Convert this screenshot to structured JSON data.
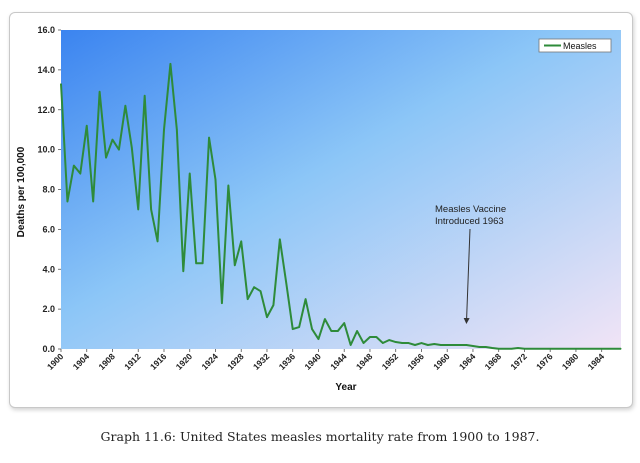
{
  "caption": "Graph 11.6: United States measles mortality rate from 1900 to 1987.",
  "chart_data": {
    "type": "line",
    "title": "",
    "xlabel": "Year",
    "ylabel": "Deaths per 100,000",
    "xlim": [
      1900,
      1987
    ],
    "ylim": [
      0,
      16
    ],
    "y_ticks": [
      "0.0",
      "2.0",
      "4.0",
      "6.0",
      "8.0",
      "10.0",
      "12.0",
      "14.0",
      "16.0"
    ],
    "x_ticks": [
      "1900",
      "1904",
      "1908",
      "1912",
      "1916",
      "1920",
      "1924",
      "1928",
      "1932",
      "1936",
      "1940",
      "1944",
      "1948",
      "1952",
      "1956",
      "1960",
      "1964",
      "1968",
      "1972",
      "1976",
      "1980",
      "1984"
    ],
    "grid": false,
    "legend_position": "top-right",
    "background_gradient": [
      "#3b84f0",
      "#8cc6f7",
      "#f1e4f6"
    ],
    "series": [
      {
        "name": "Measles",
        "color": "#2e8b3a",
        "x": [
          1900,
          1901,
          1902,
          1903,
          1904,
          1905,
          1906,
          1907,
          1908,
          1909,
          1910,
          1911,
          1912,
          1913,
          1914,
          1915,
          1916,
          1917,
          1918,
          1919,
          1920,
          1921,
          1922,
          1923,
          1924,
          1925,
          1926,
          1927,
          1928,
          1929,
          1930,
          1931,
          1932,
          1933,
          1934,
          1935,
          1936,
          1937,
          1938,
          1939,
          1940,
          1941,
          1942,
          1943,
          1944,
          1945,
          1946,
          1947,
          1948,
          1949,
          1950,
          1951,
          1952,
          1953,
          1954,
          1955,
          1956,
          1957,
          1958,
          1959,
          1960,
          1961,
          1962,
          1963,
          1964,
          1965,
          1966,
          1967,
          1968,
          1969,
          1970,
          1971,
          1972,
          1973,
          1974,
          1975,
          1976,
          1977,
          1978,
          1979,
          1980,
          1981,
          1982,
          1983,
          1984,
          1985,
          1986,
          1987
        ],
        "y": [
          13.3,
          7.4,
          9.2,
          8.8,
          11.2,
          7.4,
          12.9,
          9.6,
          10.5,
          10.0,
          12.2,
          10.1,
          7.0,
          12.7,
          7.0,
          5.4,
          11.0,
          14.3,
          11.0,
          3.9,
          8.8,
          4.3,
          4.3,
          10.6,
          8.5,
          2.3,
          8.2,
          4.2,
          5.4,
          2.5,
          3.1,
          2.9,
          1.6,
          2.2,
          5.5,
          3.3,
          1.0,
          1.1,
          2.5,
          1.0,
          0.5,
          1.5,
          0.9,
          0.9,
          1.3,
          0.2,
          0.9,
          0.3,
          0.6,
          0.6,
          0.3,
          0.45,
          0.35,
          0.3,
          0.3,
          0.2,
          0.3,
          0.2,
          0.25,
          0.2,
          0.2,
          0.2,
          0.2,
          0.2,
          0.15,
          0.1,
          0.1,
          0.05,
          0.01,
          0.01,
          0.01,
          0.05,
          0.01,
          0.01,
          0.01,
          0.01,
          0.01,
          0.01,
          0.01,
          0.01,
          0.01,
          0.01,
          0.01,
          0.01,
          0.01,
          0.01,
          0.01,
          0.01
        ]
      }
    ],
    "annotations": [
      {
        "lines": [
          "Measles Vaccine",
          "Introduced 1963"
        ],
        "points_to": {
          "x": 1963,
          "y": 0.2
        }
      }
    ]
  }
}
